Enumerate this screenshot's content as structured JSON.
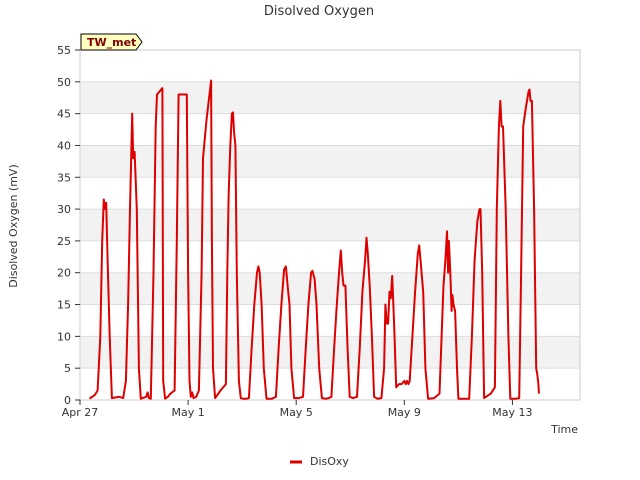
{
  "chart_data": {
    "type": "line",
    "title": "Disolved Oxygen",
    "xlabel": "Time",
    "ylabel": "Disolved Oxygen (mV)",
    "site_tag": "TW_met",
    "ylim": [
      0,
      55
    ],
    "yticks": [
      0,
      5,
      10,
      15,
      20,
      25,
      30,
      35,
      40,
      45,
      50,
      55
    ],
    "xlim": [
      0,
      18.5
    ],
    "xticks": [
      {
        "value": 0,
        "label": "Apr 27"
      },
      {
        "value": 4,
        "label": "May 1"
      },
      {
        "value": 8,
        "label": "May 5"
      },
      {
        "value": 12,
        "label": "May 9"
      },
      {
        "value": 16,
        "label": "May 13"
      }
    ],
    "colors": {
      "series": "#dd0000",
      "band": "#f2f2f2",
      "grid": "#dddddd",
      "tag_bg": "#ffffc0"
    },
    "series": [
      {
        "name": "DisOxy",
        "points": [
          [
            0.35,
            0.2
          ],
          [
            0.45,
            0.5
          ],
          [
            0.55,
            0.8
          ],
          [
            0.65,
            1.5
          ],
          [
            0.75,
            10
          ],
          [
            0.82,
            25
          ],
          [
            0.88,
            31.5
          ],
          [
            0.93,
            30
          ],
          [
            0.97,
            31
          ],
          [
            1.02,
            22
          ],
          [
            1.1,
            10
          ],
          [
            1.18,
            0.3
          ],
          [
            1.3,
            0.4
          ],
          [
            1.45,
            0.5
          ],
          [
            1.6,
            0.3
          ],
          [
            1.7,
            3
          ],
          [
            1.78,
            15
          ],
          [
            1.85,
            30
          ],
          [
            1.9,
            39.5
          ],
          [
            1.93,
            45
          ],
          [
            1.97,
            38
          ],
          [
            2.02,
            39
          ],
          [
            2.1,
            30
          ],
          [
            2.18,
            5
          ],
          [
            2.25,
            0.2
          ],
          [
            2.45,
            0.5
          ],
          [
            2.5,
            1.2
          ],
          [
            2.55,
            0.3
          ],
          [
            2.62,
            0.2
          ],
          [
            2.72,
            20
          ],
          [
            2.8,
            43
          ],
          [
            2.85,
            48
          ],
          [
            3.05,
            49
          ],
          [
            3.08,
            3
          ],
          [
            3.15,
            0.2
          ],
          [
            3.25,
            0.5
          ],
          [
            3.35,
            1
          ],
          [
            3.5,
            1.5
          ],
          [
            3.58,
            25
          ],
          [
            3.65,
            48
          ],
          [
            3.95,
            48
          ],
          [
            4.0,
            20
          ],
          [
            4.05,
            3
          ],
          [
            4.1,
            0.5
          ],
          [
            4.15,
            1.2
          ],
          [
            4.2,
            0.3
          ],
          [
            4.3,
            0.5
          ],
          [
            4.4,
            1.5
          ],
          [
            4.5,
            20
          ],
          [
            4.55,
            38
          ],
          [
            4.68,
            44
          ],
          [
            4.85,
            50.2
          ],
          [
            4.88,
            25
          ],
          [
            4.92,
            5
          ],
          [
            5.0,
            0.3
          ],
          [
            5.2,
            1.5
          ],
          [
            5.4,
            2.5
          ],
          [
            5.45,
            20
          ],
          [
            5.5,
            32
          ],
          [
            5.56,
            40
          ],
          [
            5.62,
            45
          ],
          [
            5.66,
            45.2
          ],
          [
            5.7,
            42
          ],
          [
            5.75,
            40
          ],
          [
            5.8,
            20
          ],
          [
            5.88,
            3
          ],
          [
            5.95,
            0.3
          ],
          [
            6.05,
            0.2
          ],
          [
            6.15,
            0.2
          ],
          [
            6.25,
            0.3
          ],
          [
            6.35,
            8
          ],
          [
            6.45,
            15
          ],
          [
            6.55,
            20
          ],
          [
            6.6,
            21
          ],
          [
            6.65,
            20
          ],
          [
            6.72,
            15
          ],
          [
            6.8,
            5
          ],
          [
            6.9,
            0.2
          ],
          [
            7.1,
            0.2
          ],
          [
            7.25,
            0.5
          ],
          [
            7.35,
            8
          ],
          [
            7.45,
            15
          ],
          [
            7.55,
            20.5
          ],
          [
            7.62,
            21
          ],
          [
            7.68,
            18
          ],
          [
            7.75,
            15
          ],
          [
            7.82,
            5
          ],
          [
            7.92,
            0.3
          ],
          [
            8.1,
            0.3
          ],
          [
            8.25,
            0.5
          ],
          [
            8.35,
            8
          ],
          [
            8.45,
            15
          ],
          [
            8.55,
            20
          ],
          [
            8.6,
            20.3
          ],
          [
            8.68,
            19
          ],
          [
            8.75,
            15
          ],
          [
            8.85,
            5
          ],
          [
            8.95,
            0.3
          ],
          [
            9.1,
            0.2
          ],
          [
            9.2,
            0.3
          ],
          [
            9.3,
            0.5
          ],
          [
            9.4,
            8
          ],
          [
            9.5,
            15
          ],
          [
            9.6,
            21
          ],
          [
            9.65,
            23.5
          ],
          [
            9.7,
            20
          ],
          [
            9.75,
            18
          ],
          [
            9.82,
            18
          ],
          [
            9.9,
            8
          ],
          [
            9.98,
            0.5
          ],
          [
            10.1,
            0.3
          ],
          [
            10.25,
            0.5
          ],
          [
            10.35,
            8
          ],
          [
            10.45,
            17
          ],
          [
            10.55,
            22
          ],
          [
            10.6,
            25.5
          ],
          [
            10.65,
            23
          ],
          [
            10.72,
            18
          ],
          [
            10.8,
            10
          ],
          [
            10.88,
            0.5
          ],
          [
            11.0,
            0.2
          ],
          [
            11.15,
            0.3
          ],
          [
            11.25,
            5
          ],
          [
            11.3,
            15
          ],
          [
            11.35,
            12
          ],
          [
            11.4,
            12
          ],
          [
            11.45,
            17
          ],
          [
            11.5,
            16
          ],
          [
            11.55,
            19.5
          ],
          [
            11.62,
            12
          ],
          [
            11.7,
            2
          ],
          [
            11.8,
            2.5
          ],
          [
            11.9,
            2.5
          ],
          [
            12.0,
            3
          ],
          [
            12.05,
            2.5
          ],
          [
            12.1,
            3
          ],
          [
            12.15,
            2.5
          ],
          [
            12.2,
            3
          ],
          [
            12.3,
            10
          ],
          [
            12.4,
            17
          ],
          [
            12.5,
            23
          ],
          [
            12.55,
            24.3
          ],
          [
            12.6,
            22
          ],
          [
            12.7,
            17
          ],
          [
            12.78,
            5
          ],
          [
            12.88,
            0.2
          ],
          [
            13.1,
            0.3
          ],
          [
            13.3,
            1
          ],
          [
            13.38,
            10
          ],
          [
            13.45,
            18
          ],
          [
            13.52,
            22
          ],
          [
            13.58,
            26.5
          ],
          [
            13.62,
            20
          ],
          [
            13.65,
            25
          ],
          [
            13.7,
            20
          ],
          [
            13.75,
            14
          ],
          [
            13.78,
            16.5
          ],
          [
            13.82,
            15
          ],
          [
            13.88,
            14
          ],
          [
            13.95,
            5
          ],
          [
            14.0,
            0.2
          ],
          [
            14.2,
            0.2
          ],
          [
            14.4,
            0.2
          ],
          [
            14.5,
            10
          ],
          [
            14.6,
            22
          ],
          [
            14.7,
            28
          ],
          [
            14.78,
            30
          ],
          [
            14.82,
            30
          ],
          [
            14.88,
            20
          ],
          [
            14.95,
            0.3
          ],
          [
            15.2,
            1
          ],
          [
            15.35,
            2
          ],
          [
            15.42,
            30
          ],
          [
            15.5,
            43
          ],
          [
            15.55,
            47
          ],
          [
            15.6,
            43
          ],
          [
            15.65,
            43
          ],
          [
            15.75,
            30
          ],
          [
            15.85,
            10
          ],
          [
            15.92,
            0.2
          ],
          [
            16.1,
            0.2
          ],
          [
            16.25,
            0.3
          ],
          [
            16.32,
            20
          ],
          [
            16.4,
            43
          ],
          [
            16.5,
            46
          ],
          [
            16.6,
            48.5
          ],
          [
            16.63,
            48.8
          ],
          [
            16.67,
            47
          ],
          [
            16.72,
            47
          ],
          [
            16.8,
            30
          ],
          [
            16.88,
            5
          ],
          [
            16.92,
            4
          ],
          [
            16.96,
            2.5
          ],
          [
            16.98,
            1
          ]
        ]
      }
    ]
  }
}
